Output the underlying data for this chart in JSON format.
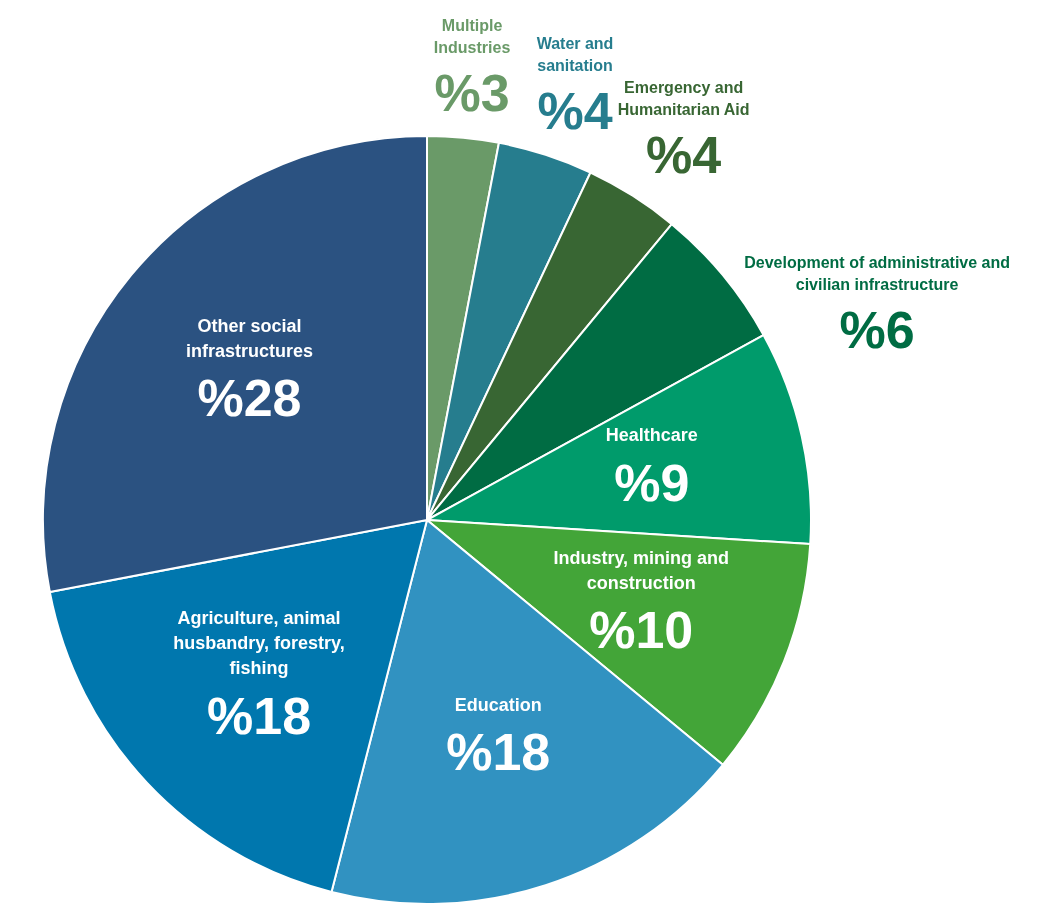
{
  "chart_data": {
    "type": "pie",
    "categories": [
      "Multiple Industries",
      "Water and sanitation",
      "Emergency and Humanitarian Aid",
      "Development of administrative and civilian infrastructure",
      "Healthcare",
      "Industry, mining and construction",
      "Education",
      "Agriculture, animal husbandry, forestry, fishing",
      "Other social infrastructures"
    ],
    "values": [
      3,
      4,
      4,
      6,
      9,
      10,
      18,
      18,
      28
    ],
    "value_labels": [
      "%3",
      "%4",
      "%4",
      "%6",
      "%9",
      "%10",
      "%18",
      "%18",
      "%28"
    ],
    "colors": [
      "#6a9a68",
      "#267d8e",
      "#386633",
      "#006c43",
      "#009b6b",
      "#43a538",
      "#3192c1",
      "#0077ae",
      "#2b5281"
    ]
  }
}
